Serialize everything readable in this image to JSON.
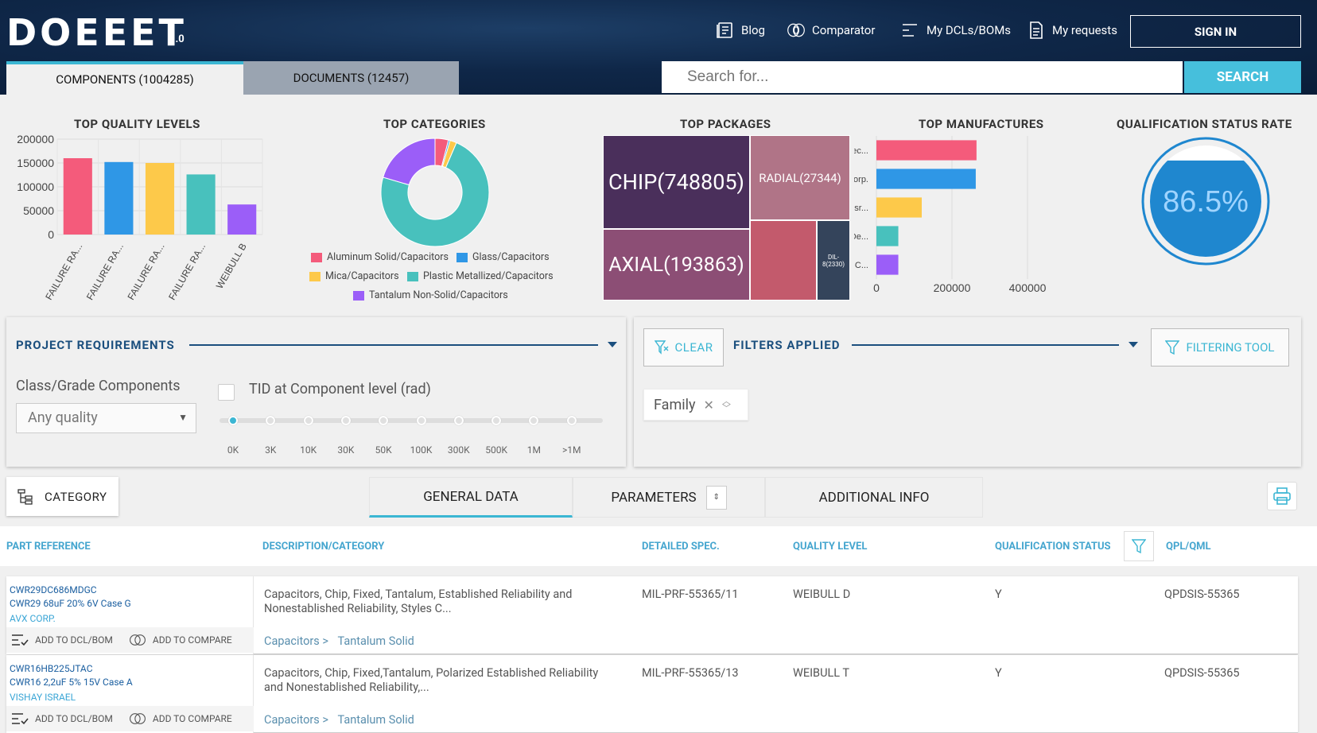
{
  "header": {
    "logo": "DOEEET",
    "version": "1.0",
    "nav": [
      {
        "label": "Blog",
        "icon": "blog-icon"
      },
      {
        "label": "Comparator",
        "icon": "comparator-icon"
      },
      {
        "label": "My DCLs/BOMs",
        "icon": "list-icon"
      },
      {
        "label": "My requests",
        "icon": "document-icon"
      }
    ],
    "signin": "SIGN IN",
    "tabs": [
      "COMPONENTS (1004285)",
      "DOCUMENTS (12457)"
    ],
    "search_placeholder": "Search for...",
    "search_button": "SEARCH"
  },
  "dashboard": {
    "titles": {
      "quality": "TOP QUALITY LEVELS",
      "categories": "TOP CATEGORIES",
      "packages": "TOP PACKAGES",
      "manufactures": "TOP MANUFACTURES",
      "qualification": "QUALIFICATION STATUS RATE"
    },
    "qualification_rate": "86.5%",
    "qualification_value": 0.865,
    "packages": [
      {
        "label": "CHIP(748805)",
        "color": "#4a2f5b"
      },
      {
        "label": "RADIAL(27344)",
        "color": "#b07487"
      },
      {
        "label": "AXIAL(193863)",
        "color": "#8c4e75"
      },
      {
        "label": "",
        "color": "#c35a6c"
      },
      {
        "label": "DIL-8(2330)",
        "color": "#34445b"
      }
    ],
    "category_legend": [
      {
        "label": "Aluminum Solid/Capacitors",
        "color": "#f45b7b"
      },
      {
        "label": "Glass/Capacitors",
        "color": "#2f97e6"
      },
      {
        "label": "Mica/Capacitors",
        "color": "#fdc94a"
      },
      {
        "label": "Plastic Metallized/Capacitors",
        "color": "#48c1bd"
      },
      {
        "label": "Tantalum Non-Solid/Capacitors",
        "color": "#9b5ef8"
      }
    ]
  },
  "chart_data": [
    {
      "type": "bar",
      "title": "TOP QUALITY LEVELS",
      "categories": [
        "FAILURE RA...",
        "FAILURE RA...",
        "FAILURE RA...",
        "FAILURE RA...",
        "WEIBULL B"
      ],
      "values": [
        160000,
        152000,
        150000,
        126000,
        63000
      ],
      "colors": [
        "#f45b7b",
        "#2f97e6",
        "#fdc94a",
        "#48c1bd",
        "#9b5ef8"
      ],
      "ylim": [
        0,
        200000
      ],
      "yticks": [
        "200000",
        "150000",
        "100000",
        "50000",
        "0"
      ]
    },
    {
      "type": "pie",
      "title": "TOP CATEGORIES",
      "labels": [
        "Aluminum Solid/Capacitors",
        "Glass/Capacitors",
        "Mica/Capacitors",
        "Plastic Metallized/Capacitors",
        "Tantalum Non-Solid/Capacitors"
      ],
      "values": [
        4,
        0.5,
        2,
        73,
        20.5
      ],
      "colors": [
        "#f45b7b",
        "#2f97e6",
        "#fdc94a",
        "#48c1bd",
        "#9b5ef8"
      ]
    },
    {
      "type": "bar",
      "orientation": "horizontal",
      "title": "TOP MANUFACTURES",
      "categories": [
        "Kemet Elec...",
        "AVX Corp.",
        "Vishay Isr...",
        "Exxelia De...",
        "Presidio C..."
      ],
      "values": [
        265000,
        263000,
        120000,
        58000,
        58000
      ],
      "colors": [
        "#f45b7b",
        "#2f97e6",
        "#fdc94a",
        "#48c1bd",
        "#9b5ef8"
      ],
      "xlim": [
        0,
        400000
      ],
      "xticks": [
        "0",
        "200000",
        "400000"
      ]
    }
  ],
  "requirements": {
    "title": "PROJECT REQUIREMENTS",
    "class_label": "Class/Grade Components",
    "class_value": "Any quality",
    "tid_label": "TID at Component level (rad)",
    "tid_ticks": [
      "0K",
      "3K",
      "10K",
      "30K",
      "50K",
      "100K",
      "300K",
      "500K",
      "1M",
      ">1M"
    ],
    "tid_selected": "0K"
  },
  "filters": {
    "clear": "CLEAR",
    "title": "FILTERS APPLIED",
    "tool": "FILTERING TOOL",
    "chip": "Family"
  },
  "results": {
    "category_button": "CATEGORY",
    "tabs": [
      "GENERAL DATA",
      "PARAMETERS",
      "ADDITIONAL INFO"
    ],
    "columns": [
      "PART REFERENCE",
      "DESCRIPTION/CATEGORY",
      "DETAILED SPEC.",
      "QUALITY LEVEL",
      "QUALIFICATION STATUS",
      "QPL/QML"
    ],
    "add_dcl": "ADD TO DCL/BOM",
    "add_compare": "ADD TO COMPARE",
    "rows": [
      {
        "part": "CWR29DC686MDGC",
        "subtitle": "CWR29 68uF 20% 6V Case G",
        "manufacturer": "AVX CORP.",
        "description": "Capacitors, Chip, Fixed, Tantalum, Established Reliability and Nonestablished Reliability, Styles C...",
        "category": "Capacitors >",
        "subcategory": "Tantalum Solid",
        "spec": "MIL-PRF-55365/11",
        "quality": "WEIBULL D",
        "status": "Y",
        "qpl": "QPDSIS-55365"
      },
      {
        "part": "CWR16HB225JTAC",
        "subtitle": "CWR16 2,2uF 5% 15V Case A",
        "manufacturer": "VISHAY ISRAEL",
        "description": "Capacitors, Chip, Fixed,Tantalum, Polarized Established Reliability and Nonestablished Reliability,...",
        "category": "Capacitors >",
        "subcategory": "Tantalum Solid",
        "spec": "MIL-PRF-55365/13",
        "quality": "WEIBULL T",
        "status": "Y",
        "qpl": "QPDSIS-55365"
      }
    ]
  }
}
